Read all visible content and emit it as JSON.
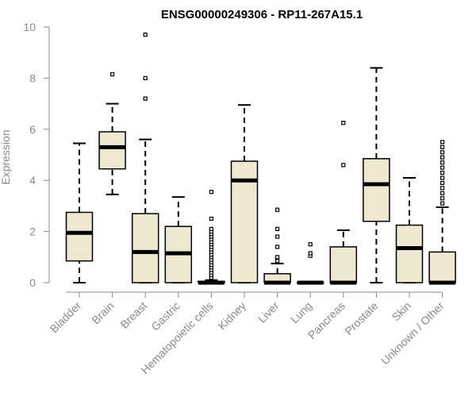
{
  "chart_data": {
    "type": "box",
    "title": "ENSG00000249306 - RP11-267A15.1",
    "xlabel": "",
    "ylabel": "Expression",
    "ylim": [
      0,
      10
    ],
    "yticks": [
      0,
      2,
      4,
      6,
      8,
      10
    ],
    "grid": false,
    "colors": {
      "box_fill": "#efe8d0",
      "stroke": "#000000",
      "axis": "#8a8a8a",
      "label": "#8a8a8a"
    },
    "categories": [
      "Bladder",
      "Brain",
      "Breast",
      "Gastric",
      "Hematopoietic cells",
      "Kidney",
      "Liver",
      "Lung",
      "Pancreas",
      "Prostate",
      "Skin",
      "Unknown / Other"
    ],
    "boxes": [
      {
        "name": "Bladder",
        "whisker_low": 0,
        "q1": 0.85,
        "median": 1.95,
        "q3": 2.75,
        "whisker_high": 5.45,
        "outliers": []
      },
      {
        "name": "Brain",
        "whisker_low": 3.45,
        "q1": 4.45,
        "median": 5.3,
        "q3": 5.9,
        "whisker_high": 7.0,
        "outliers": [
          8.15
        ]
      },
      {
        "name": "Breast",
        "whisker_low": 0,
        "q1": 0,
        "median": 1.2,
        "q3": 2.7,
        "whisker_high": 5.6,
        "outliers": [
          7.2,
          8.0,
          9.7
        ]
      },
      {
        "name": "Gastric",
        "whisker_low": 0,
        "q1": 0,
        "median": 1.15,
        "q3": 2.2,
        "whisker_high": 3.35,
        "outliers": []
      },
      {
        "name": "Hematopoietic cells",
        "whisker_low": 0,
        "q1": 0,
        "median": 0,
        "q3": 0.05,
        "whisker_high": 0.1,
        "outliers": [
          0.2,
          0.3,
          0.4,
          0.5,
          0.6,
          0.7,
          0.8,
          0.9,
          1.0,
          1.1,
          1.2,
          1.3,
          1.4,
          1.5,
          1.6,
          1.7,
          1.8,
          1.9,
          2.0,
          2.1,
          2.5,
          3.55
        ]
      },
      {
        "name": "Kidney",
        "whisker_low": 0,
        "q1": 0,
        "median": 4.0,
        "q3": 4.75,
        "whisker_high": 6.95,
        "outliers": []
      },
      {
        "name": "Liver",
        "whisker_low": 0,
        "q1": 0,
        "median": 0,
        "q3": 0.35,
        "whisker_high": 0.75,
        "outliers": [
          0.85,
          1.0,
          1.4,
          1.8,
          2.1,
          2.85
        ]
      },
      {
        "name": "Lung",
        "whisker_low": 0,
        "q1": 0,
        "median": 0,
        "q3": 0,
        "whisker_high": 0,
        "outliers": [
          1.05,
          1.15,
          1.5
        ]
      },
      {
        "name": "Pancreas",
        "whisker_low": 0,
        "q1": 0,
        "median": 0,
        "q3": 1.4,
        "whisker_high": 2.05,
        "outliers": [
          4.6,
          6.25
        ]
      },
      {
        "name": "Prostate",
        "whisker_low": 0,
        "q1": 2.4,
        "median": 3.85,
        "q3": 4.85,
        "whisker_high": 8.4,
        "outliers": []
      },
      {
        "name": "Skin",
        "whisker_low": 0,
        "q1": 0,
        "median": 1.35,
        "q3": 2.25,
        "whisker_high": 4.1,
        "outliers": []
      },
      {
        "name": "Unknown / Other",
        "whisker_low": 0,
        "q1": 0,
        "median": 0,
        "q3": 1.2,
        "whisker_high": 2.95,
        "outliers": [
          3.1,
          3.3,
          3.5,
          3.7,
          3.9,
          4.1,
          4.3,
          4.5,
          4.7,
          4.9,
          5.1,
          5.3,
          5.5
        ]
      }
    ]
  }
}
